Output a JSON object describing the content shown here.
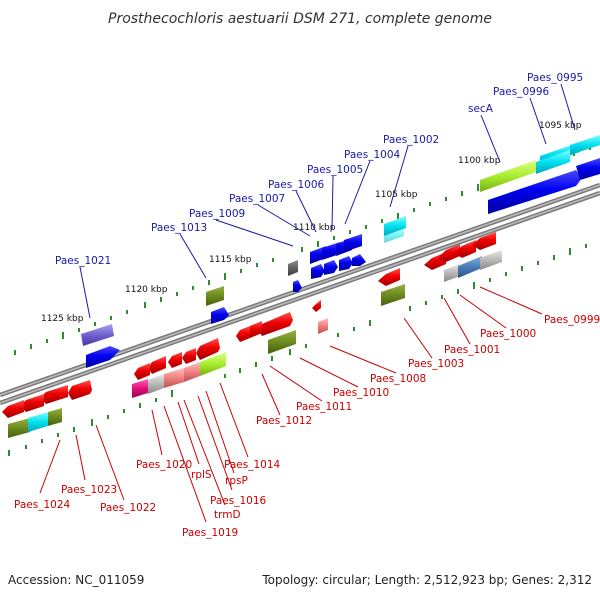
{
  "title": "Prosthecochloris aestuarii DSM 271, complete genome",
  "footer": {
    "accession": "Accession: NC_011059",
    "topology": "Topology: circular; Length: 2,512,923 bp; Genes: 2,312"
  },
  "colors": {
    "backbone": "#8a8a8a",
    "top_label": "#1a1aa6",
    "bottom_label": "#c80000",
    "tick": "#2e8b2e"
  },
  "kbp_labels": [
    "1095 kbp",
    "1100 kbp",
    "1105 kbp",
    "1110 kbp",
    "1115 kbp",
    "1120 kbp",
    "1125 kbp"
  ],
  "top_labels": [
    "Paes_0995",
    "Paes_0996",
    "secA",
    "Paes_1002",
    "Paes_1004",
    "Paes_1005",
    "Paes_1006",
    "Paes_1007",
    "Paes_1009",
    "Paes_1013",
    "Paes_1021"
  ],
  "bottom_labels": [
    "Paes_0999",
    "Paes_1000",
    "Paes_1001",
    "Paes_1003",
    "Paes_1008",
    "Paes_1010",
    "Paes_1011",
    "Paes_1012",
    "Paes_1014",
    "rpsP",
    "Paes_1016",
    "trmD",
    "rplS",
    "Paes_1019",
    "Paes_1020",
    "Paes_1022",
    "Paes_1023",
    "Paes_1024"
  ]
}
